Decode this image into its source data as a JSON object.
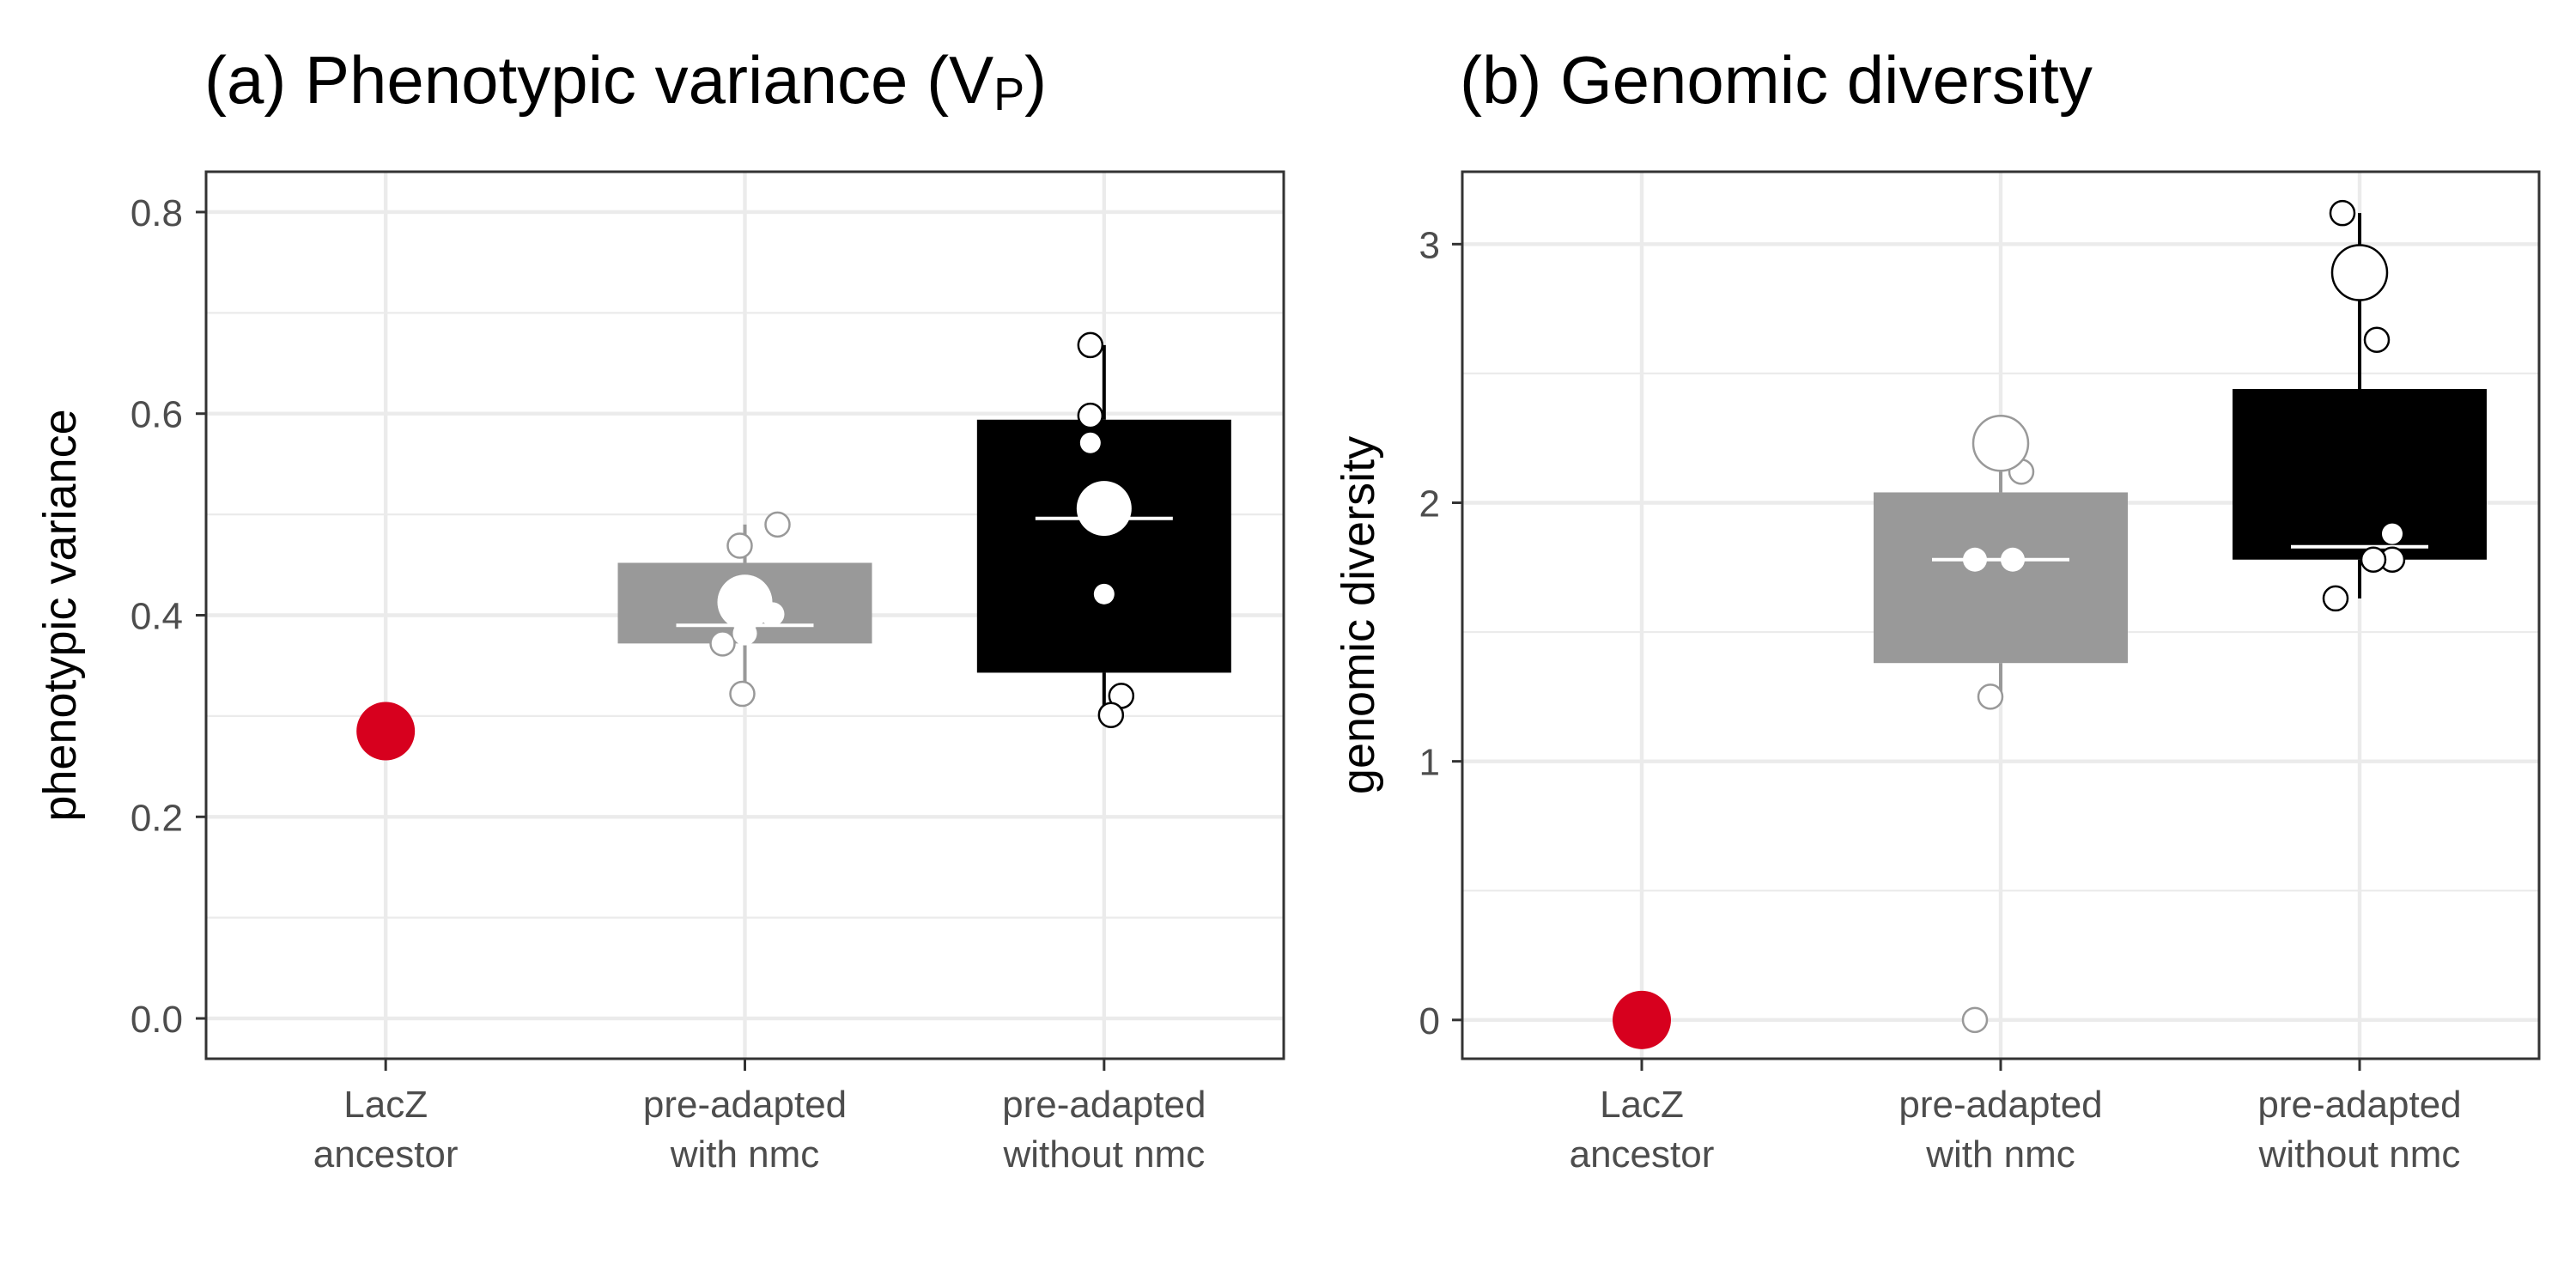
{
  "chart_data": [
    {
      "type": "boxplot",
      "panel_label": "(a)",
      "title": "Phenotypic variance",
      "title_symbol": "V",
      "title_symbol_sub": "P",
      "xlabel": "",
      "ylabel": "phenotypic variance",
      "ylim": [
        -0.04,
        0.84
      ],
      "yticks": [
        "0.0",
        "0.2",
        "0.4",
        "0.6",
        "0.8"
      ],
      "ytick_values": [
        0.0,
        0.2,
        0.4,
        0.6,
        0.8
      ],
      "grid": true,
      "categories": [
        {
          "lines": [
            "LacZ",
            "ancestor"
          ]
        },
        {
          "lines": [
            "pre-adapted",
            "with nmc"
          ]
        },
        {
          "lines": [
            "pre-adapted",
            "without nmc"
          ]
        }
      ],
      "groups": [
        {
          "color": "#d7001e",
          "box": null,
          "mean": 0.285,
          "points": []
        },
        {
          "color": "#999999",
          "box": {
            "q1": 0.372,
            "median": 0.39,
            "q3": 0.452,
            "whisker_low": 0.322,
            "whisker_high": 0.49
          },
          "mean": 0.413,
          "points": [
            0.469,
            0.49,
            0.372,
            0.382,
            0.401,
            0.322
          ]
        },
        {
          "color": "#000000",
          "box": {
            "q1": 0.343,
            "median": 0.496,
            "q3": 0.594,
            "whisker_low": 0.3,
            "whisker_high": 0.668
          },
          "mean": 0.506,
          "points": [
            0.668,
            0.598,
            0.571,
            0.421,
            0.32,
            0.301
          ]
        }
      ]
    },
    {
      "type": "boxplot",
      "panel_label": "(b)",
      "title": "Genomic diversity",
      "xlabel": "",
      "ylabel": "genomic diversity",
      "ylim": [
        -0.15,
        3.28
      ],
      "yticks": [
        "0",
        "1",
        "2",
        "3"
      ],
      "ytick_values": [
        0,
        1,
        2,
        3
      ],
      "grid": true,
      "categories": [
        {
          "lines": [
            "LacZ",
            "ancestor"
          ]
        },
        {
          "lines": [
            "pre-adapted",
            "with nmc"
          ]
        },
        {
          "lines": [
            "pre-adapted",
            "without nmc"
          ]
        }
      ],
      "groups": [
        {
          "color": "#d7001e",
          "box": null,
          "mean": 0.0,
          "points": []
        },
        {
          "color": "#999999",
          "box": {
            "q1": 1.38,
            "median": 1.78,
            "q3": 2.04,
            "whisker_low": 1.25,
            "whisker_high": 2.12
          },
          "mean": 2.23,
          "points": [
            2.12,
            1.78,
            1.78,
            1.25,
            0.0
          ]
        },
        {
          "color": "#000000",
          "box": {
            "q1": 1.78,
            "median": 1.83,
            "q3": 2.44,
            "whisker_low": 1.63,
            "whisker_high": 3.12
          },
          "mean": 2.89,
          "points": [
            3.12,
            2.63,
            1.88,
            1.78,
            1.78,
            1.63
          ]
        }
      ]
    }
  ]
}
